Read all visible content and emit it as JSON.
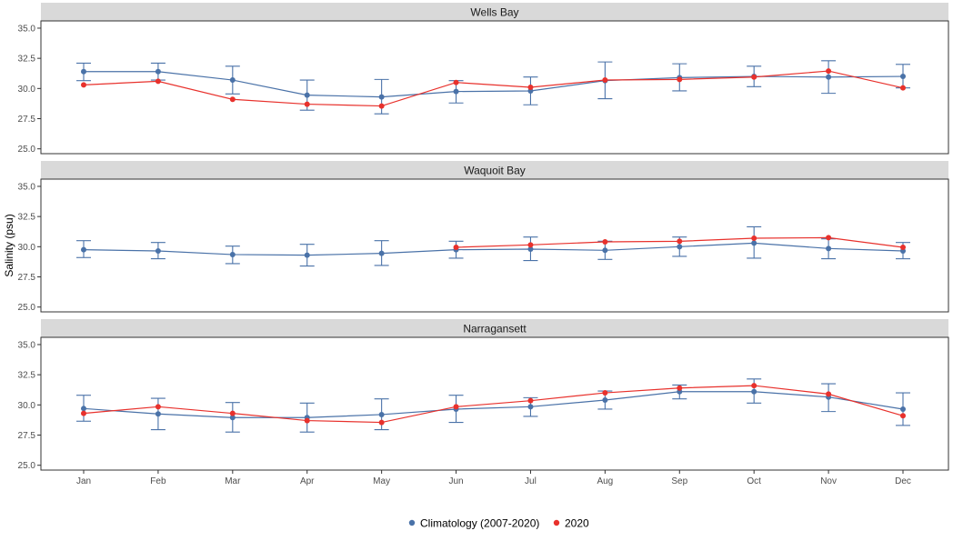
{
  "chart_data": {
    "type": "line",
    "ylabel": "Salinity (psu)",
    "ylim": [
      24.6,
      35.6
    ],
    "yticks": [
      "25.0",
      "27.5",
      "30.0",
      "32.5",
      "35.0"
    ],
    "categories": [
      "Jan",
      "Feb",
      "Mar",
      "Apr",
      "May",
      "Jun",
      "Jul",
      "Aug",
      "Sep",
      "Oct",
      "Nov",
      "Dec"
    ],
    "legend": {
      "position": "bottom",
      "items": [
        {
          "label": "Climatology (2007-2020)",
          "color": "#4a72a8"
        },
        {
          "label": "2020",
          "color": "#e8312c"
        }
      ]
    },
    "colors": {
      "climatology": "#4a72a8",
      "year2020": "#e8312c"
    },
    "panels": [
      {
        "title": "Wells Bay",
        "climatology": {
          "mean": [
            31.4,
            31.4,
            30.7,
            29.45,
            29.3,
            29.75,
            29.8,
            30.65,
            30.9,
            31.0,
            30.95,
            31.0
          ],
          "lower": [
            30.65,
            30.7,
            29.55,
            28.2,
            27.9,
            28.8,
            28.65,
            29.15,
            29.8,
            30.15,
            29.6,
            30.05
          ],
          "upper": [
            32.1,
            32.1,
            31.85,
            30.7,
            30.75,
            30.65,
            30.95,
            32.2,
            32.05,
            31.85,
            32.3,
            32.0
          ]
        },
        "year2020": [
          30.3,
          30.6,
          29.1,
          28.7,
          28.55,
          30.5,
          30.1,
          30.7,
          30.75,
          30.95,
          31.45,
          30.05
        ]
      },
      {
        "title": "Waquoit Bay",
        "climatology": {
          "mean": [
            29.75,
            29.65,
            29.35,
            29.3,
            29.45,
            29.75,
            29.8,
            29.7,
            30.0,
            30.3,
            29.85,
            29.65
          ],
          "lower": [
            29.1,
            29.0,
            28.6,
            28.4,
            28.45,
            29.05,
            28.85,
            28.95,
            29.2,
            29.05,
            29.0,
            29.0
          ],
          "upper": [
            30.5,
            30.35,
            30.05,
            30.2,
            30.5,
            30.45,
            30.8,
            30.45,
            30.8,
            31.65,
            30.65,
            30.35
          ]
        },
        "year2020": [
          null,
          null,
          null,
          null,
          null,
          29.95,
          30.15,
          30.4,
          30.45,
          30.7,
          30.75,
          29.95
        ]
      },
      {
        "title": "Narragansett",
        "climatology": {
          "mean": [
            29.7,
            29.25,
            28.95,
            28.95,
            29.2,
            29.65,
            29.85,
            30.4,
            31.1,
            31.1,
            30.65,
            29.65
          ],
          "lower": [
            28.65,
            27.95,
            27.75,
            27.75,
            27.95,
            28.55,
            29.05,
            29.65,
            30.5,
            30.15,
            29.45,
            28.3
          ],
          "upper": [
            30.8,
            30.55,
            30.2,
            30.15,
            30.5,
            30.8,
            30.6,
            31.15,
            31.65,
            32.15,
            31.75,
            31.0
          ]
        },
        "year2020": [
          29.3,
          29.85,
          29.3,
          28.7,
          28.55,
          29.85,
          30.35,
          31.0,
          31.4,
          31.6,
          30.9,
          29.1
        ]
      }
    ]
  }
}
